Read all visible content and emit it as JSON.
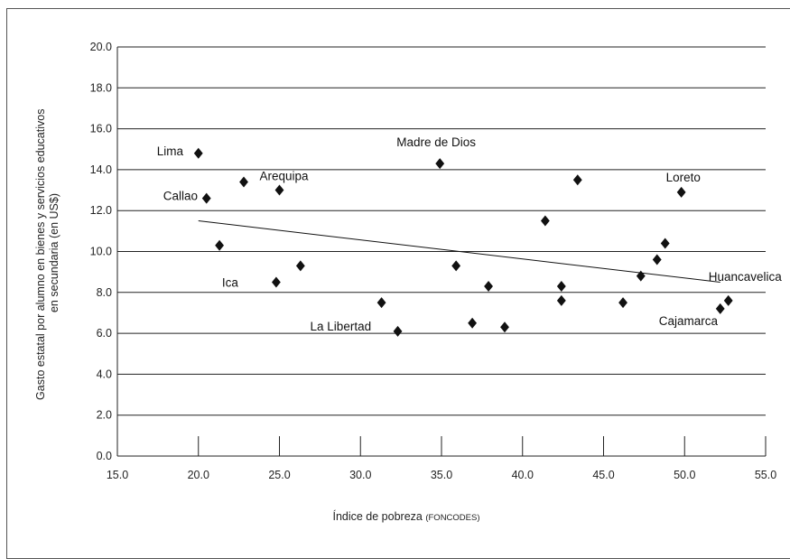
{
  "chart_data": {
    "type": "scatter",
    "xlabel": "Índice de pobreza",
    "xlabel_small": "(FONCODES)",
    "ylabel_line1": "Gasto estatal por alumno en bienes y servicios educativos",
    "ylabel_line2": "en secundaria (en US$)",
    "xlim": [
      15,
      55
    ],
    "ylim": [
      0,
      20
    ],
    "x_ticks": [
      "15.0",
      "20.0",
      "25.0",
      "30.0",
      "35.0",
      "40.0",
      "45.0",
      "50.0",
      "55.0"
    ],
    "y_ticks": [
      "0.0",
      "2.0",
      "4.0",
      "6.0",
      "8.0",
      "10.0",
      "12.0",
      "14.0",
      "16.0",
      "18.0",
      "20.0"
    ],
    "grid": "horizontal",
    "marker": "diamond",
    "marker_color": "#111111",
    "points": [
      {
        "x": 20.0,
        "y": 14.8,
        "label": "Lima"
      },
      {
        "x": 20.5,
        "y": 12.6,
        "label": "Callao"
      },
      {
        "x": 21.3,
        "y": 10.3,
        "label": ""
      },
      {
        "x": 22.8,
        "y": 13.4,
        "label": ""
      },
      {
        "x": 24.8,
        "y": 8.5,
        "label": "Ica"
      },
      {
        "x": 25.0,
        "y": 13.0,
        "label": "Arequipa"
      },
      {
        "x": 26.3,
        "y": 9.3,
        "label": ""
      },
      {
        "x": 31.3,
        "y": 7.5,
        "label": ""
      },
      {
        "x": 32.3,
        "y": 6.1,
        "label": "La Libertad"
      },
      {
        "x": 34.9,
        "y": 14.3,
        "label": "Madre de Dios"
      },
      {
        "x": 35.9,
        "y": 9.3,
        "label": ""
      },
      {
        "x": 36.9,
        "y": 6.5,
        "label": ""
      },
      {
        "x": 37.9,
        "y": 8.3,
        "label": ""
      },
      {
        "x": 38.9,
        "y": 6.3,
        "label": ""
      },
      {
        "x": 41.4,
        "y": 11.5,
        "label": ""
      },
      {
        "x": 42.4,
        "y": 8.3,
        "label": ""
      },
      {
        "x": 42.4,
        "y": 7.6,
        "label": ""
      },
      {
        "x": 43.4,
        "y": 13.5,
        "label": ""
      },
      {
        "x": 46.2,
        "y": 7.5,
        "label": ""
      },
      {
        "x": 47.3,
        "y": 8.8,
        "label": ""
      },
      {
        "x": 48.3,
        "y": 9.6,
        "label": ""
      },
      {
        "x": 48.8,
        "y": 10.4,
        "label": ""
      },
      {
        "x": 49.8,
        "y": 12.9,
        "label": "Loreto"
      },
      {
        "x": 52.2,
        "y": 7.2,
        "label": "Cajamarca"
      },
      {
        "x": 52.7,
        "y": 7.6,
        "label": "Huancavelica"
      }
    ],
    "trendline": {
      "x": [
        20.0,
        52.2
      ],
      "y": [
        11.5,
        8.5
      ]
    }
  }
}
